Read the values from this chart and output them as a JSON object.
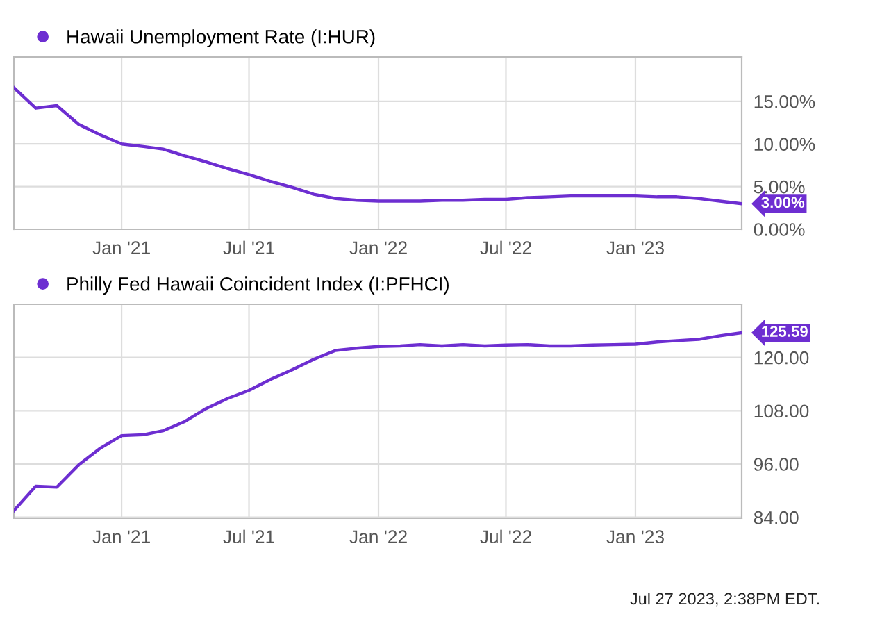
{
  "chart_data": [
    {
      "type": "line",
      "x": [
        "2020-08",
        "2020-09",
        "2020-10",
        "2020-11",
        "2020-12",
        "2021-01",
        "2021-02",
        "2021-03",
        "2021-04",
        "2021-05",
        "2021-06",
        "2021-07",
        "2021-08",
        "2021-09",
        "2021-10",
        "2021-11",
        "2021-12",
        "2022-01",
        "2022-02",
        "2022-03",
        "2022-04",
        "2022-05",
        "2022-06",
        "2022-07",
        "2022-08",
        "2022-09",
        "2022-10",
        "2022-11",
        "2022-12",
        "2023-01",
        "2023-02",
        "2023-03",
        "2023-04",
        "2023-05",
        "2023-06"
      ],
      "series": [
        {
          "name": "Hawaii Unemployment Rate (I:HUR)",
          "color": "#6d2ed1",
          "values": [
            16.6,
            14.2,
            14.5,
            12.3,
            11.1,
            10.0,
            9.7,
            9.4,
            8.6,
            7.9,
            7.1,
            6.4,
            5.6,
            4.9,
            4.1,
            3.6,
            3.4,
            3.3,
            3.3,
            3.3,
            3.4,
            3.4,
            3.5,
            3.5,
            3.7,
            3.8,
            3.9,
            3.9,
            3.9,
            3.9,
            3.8,
            3.8,
            3.6,
            3.3,
            3.0
          ]
        }
      ],
      "xlim": [
        "2020-08",
        "2023-06"
      ],
      "xticks": [
        {
          "value": "2021-01",
          "label": "Jan '21"
        },
        {
          "value": "2021-07",
          "label": "Jul '21"
        },
        {
          "value": "2022-01",
          "label": "Jan '22"
        },
        {
          "value": "2022-07",
          "label": "Jul '22"
        },
        {
          "value": "2023-01",
          "label": "Jan '23"
        }
      ],
      "ylim": [
        0,
        20.2
      ],
      "yticks": [
        {
          "value": 0,
          "label": "0.00%"
        },
        {
          "value": 5,
          "label": "5.00%"
        },
        {
          "value": 10,
          "label": "10.00%"
        },
        {
          "value": 15,
          "label": "15.00%"
        }
      ],
      "grid": true,
      "legend": "top left",
      "marker": "none",
      "line_style": "solid",
      "annotations": [
        {
          "text": "3.00%",
          "x": "2023-06",
          "y": 3.0
        }
      ]
    },
    {
      "type": "line",
      "x": [
        "2020-08",
        "2020-09",
        "2020-10",
        "2020-11",
        "2020-12",
        "2021-01",
        "2021-02",
        "2021-03",
        "2021-04",
        "2021-05",
        "2021-06",
        "2021-07",
        "2021-08",
        "2021-09",
        "2021-10",
        "2021-11",
        "2021-12",
        "2022-01",
        "2022-02",
        "2022-03",
        "2022-04",
        "2022-05",
        "2022-06",
        "2022-07",
        "2022-08",
        "2022-09",
        "2022-10",
        "2022-11",
        "2022-12",
        "2023-01",
        "2023-02",
        "2023-03",
        "2023-04",
        "2023-05",
        "2023-06"
      ],
      "series": [
        {
          "name": "Philly Fed Hawaii Coincident Index (I:PFHCI)",
          "color": "#6d2ed1",
          "values": [
            85.5,
            91.0,
            90.8,
            95.8,
            99.5,
            102.4,
            102.6,
            103.5,
            105.6,
            108.5,
            110.8,
            112.6,
            115.1,
            117.3,
            119.6,
            121.6,
            122.1,
            122.5,
            122.6,
            122.9,
            122.6,
            122.9,
            122.6,
            122.8,
            122.9,
            122.6,
            122.6,
            122.8,
            122.9,
            123.0,
            123.5,
            123.8,
            124.1,
            124.9,
            125.59
          ]
        }
      ],
      "xlim": [
        "2020-08",
        "2023-06"
      ],
      "xticks": [
        {
          "value": "2021-01",
          "label": "Jan '21"
        },
        {
          "value": "2021-07",
          "label": "Jul '21"
        },
        {
          "value": "2022-01",
          "label": "Jan '22"
        },
        {
          "value": "2022-07",
          "label": "Jul '22"
        },
        {
          "value": "2023-01",
          "label": "Jan '23"
        }
      ],
      "ylim": [
        83.8,
        132
      ],
      "yticks": [
        {
          "value": 84,
          "label": "84.00"
        },
        {
          "value": 96,
          "label": "96.00"
        },
        {
          "value": 108,
          "label": "108.00"
        },
        {
          "value": 120,
          "label": "120.00"
        }
      ],
      "grid": true,
      "legend": "top left",
      "marker": "none",
      "line_style": "solid",
      "annotations": [
        {
          "text": "125.59",
          "x": "2023-06",
          "y": 125.59
        },
        "Jul 27 2023, 2:38PM EDT."
      ]
    }
  ]
}
